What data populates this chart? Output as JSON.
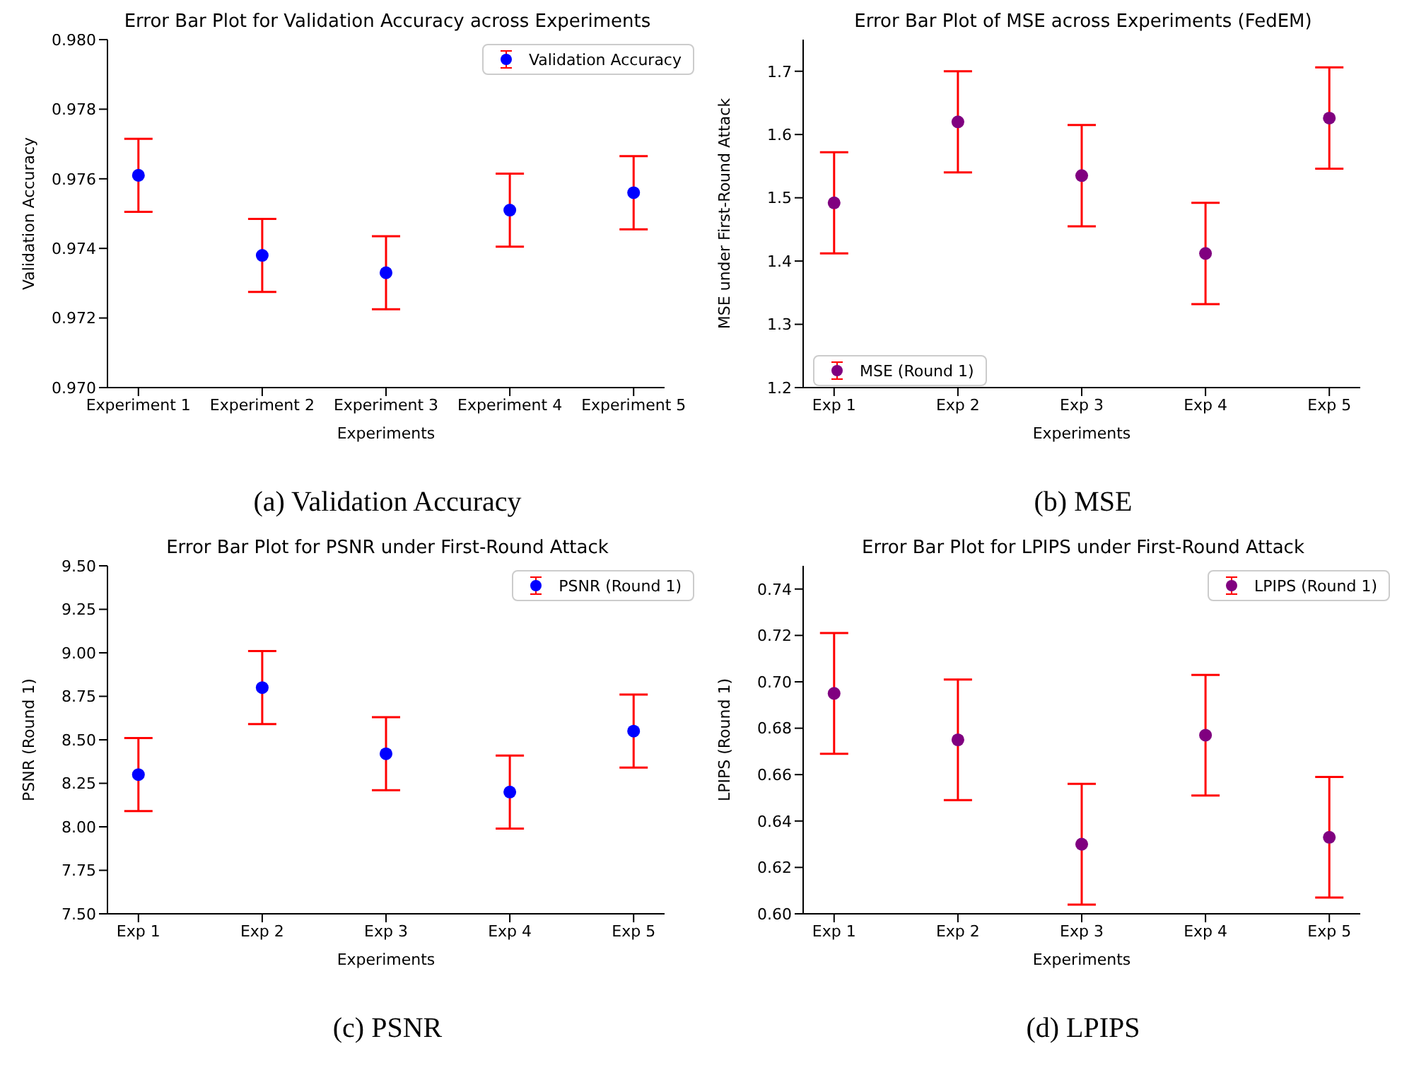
{
  "chart_data": [
    {
      "type": "scatter",
      "title": "Error Bar Plot for Validation Accuracy across Experiments",
      "xlabel": "Experiments",
      "ylabel": "Validation Accuracy",
      "categories": [
        "Experiment 1",
        "Experiment 2",
        "Experiment 3",
        "Experiment 4",
        "Experiment 5"
      ],
      "series": [
        {
          "name": "Validation Accuracy",
          "color": "#0000ff",
          "values": [
            0.9761,
            0.9738,
            0.9733,
            0.9751,
            0.9756
          ],
          "errors": [
            0.00105,
            0.00105,
            0.00105,
            0.00105,
            0.00105
          ]
        }
      ],
      "ylim": [
        0.97,
        0.98
      ],
      "yticks": [
        {
          "value": 0.97,
          "label": "0.970"
        },
        {
          "value": 0.972,
          "label": "0.972"
        },
        {
          "value": 0.974,
          "label": "0.974"
        },
        {
          "value": 0.976,
          "label": "0.976"
        },
        {
          "value": 0.978,
          "label": "0.978"
        },
        {
          "value": 0.98,
          "label": "0.980"
        }
      ],
      "legend": "top right",
      "marker": "circle",
      "grid": false,
      "annotations": [
        "(a) Validation Accuracy"
      ]
    },
    {
      "type": "scatter",
      "title": "Error Bar Plot of MSE across Experiments (FedEM)",
      "xlabel": "Experiments",
      "ylabel": "MSE under First-Round Attack",
      "categories": [
        "Exp 1",
        "Exp 2",
        "Exp 3",
        "Exp 4",
        "Exp 5"
      ],
      "series": [
        {
          "name": "MSE (Round 1)",
          "color": "#800080",
          "values": [
            1.492,
            1.62,
            1.535,
            1.412,
            1.626
          ],
          "errors": [
            0.08,
            0.08,
            0.08,
            0.08,
            0.08
          ]
        }
      ],
      "ylim": [
        1.2,
        1.75
      ],
      "yticks": [
        1.2,
        1.3,
        1.4,
        1.5,
        1.6,
        1.7
      ],
      "legend": "bottom left",
      "marker": "circle",
      "grid": false,
      "annotations": [
        "(b) MSE"
      ]
    },
    {
      "type": "scatter",
      "title": "Error Bar Plot for PSNR under First-Round Attack",
      "xlabel": "Experiments",
      "ylabel": "PSNR (Round 1)",
      "categories": [
        "Exp 1",
        "Exp 2",
        "Exp 3",
        "Exp 4",
        "Exp 5"
      ],
      "series": [
        {
          "name": "PSNR (Round 1)",
          "color": "#0000ff",
          "values": [
            8.3,
            8.8,
            8.42,
            8.2,
            8.55
          ],
          "errors": [
            0.21,
            0.21,
            0.21,
            0.21,
            0.21
          ]
        }
      ],
      "ylim": [
        7.5,
        9.5
      ],
      "yticks": [
        {
          "value": 7.5,
          "label": "7.50"
        },
        {
          "value": 7.75,
          "label": "7.75"
        },
        {
          "value": 8,
          "label": "8.00"
        },
        {
          "value": 8.25,
          "label": "8.25"
        },
        {
          "value": 8.5,
          "label": "8.50"
        },
        {
          "value": 8.75,
          "label": "8.75"
        },
        {
          "value": 9,
          "label": "9.00"
        },
        {
          "value": 9.25,
          "label": "9.25"
        },
        {
          "value": 9.5,
          "label": "9.50"
        }
      ],
      "legend": "top right",
      "marker": "circle",
      "grid": false,
      "annotations": [
        "(c) PSNR"
      ]
    },
    {
      "type": "scatter",
      "title": "Error Bar Plot for LPIPS under First-Round Attack",
      "xlabel": "Experiments",
      "ylabel": "LPIPS (Round 1)",
      "categories": [
        "Exp 1",
        "Exp 2",
        "Exp 3",
        "Exp 4",
        "Exp 5"
      ],
      "series": [
        {
          "name": "LPIPS (Round 1)",
          "color": "#800080",
          "values": [
            0.695,
            0.675,
            0.63,
            0.677,
            0.633
          ],
          "errors": [
            0.026,
            0.026,
            0.026,
            0.026,
            0.026
          ]
        }
      ],
      "ylim": [
        0.6,
        0.75
      ],
      "yticks": [
        {
          "value": 0.6,
          "label": "0.60"
        },
        {
          "value": 0.62,
          "label": "0.62"
        },
        {
          "value": 0.64,
          "label": "0.64"
        },
        {
          "value": 0.66,
          "label": "0.66"
        },
        {
          "value": 0.68,
          "label": "0.68"
        },
        {
          "value": 0.7,
          "label": "0.70"
        },
        {
          "value": 0.72,
          "label": "0.72"
        },
        {
          "value": 0.74,
          "label": "0.74"
        }
      ],
      "legend": "top right",
      "marker": "circle",
      "grid": false,
      "annotations": [
        "(d) LPIPS"
      ]
    }
  ]
}
